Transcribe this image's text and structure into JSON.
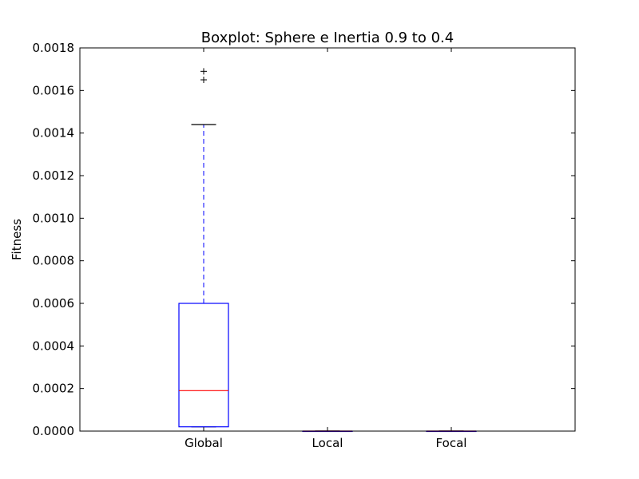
{
  "chart_data": {
    "type": "boxplot",
    "title": "Boxplot: Sphere e Inertia 0.9 to 0.4",
    "xlabel": "",
    "ylabel": "Fitness",
    "ylim": [
      0,
      0.0018
    ],
    "yticks": [
      0,
      0.0002,
      0.0004,
      0.0006,
      0.0008,
      0.001,
      0.0012,
      0.0014,
      0.0016,
      0.0018
    ],
    "ytick_labels": [
      "0.0000",
      "0.0002",
      "0.0004",
      "0.0006",
      "0.0008",
      "0.0010",
      "0.0012",
      "0.0014",
      "0.0016",
      "0.0018"
    ],
    "categories": [
      "Global",
      "Local",
      "Focal"
    ],
    "boxes": [
      {
        "category": "Global",
        "whisker_low": 2e-05,
        "q1": 2e-05,
        "median": 0.00019,
        "q3": 0.0006,
        "whisker_high": 0.00144,
        "outliers": [
          0.00165,
          0.00169
        ]
      },
      {
        "category": "Local",
        "whisker_low": 0,
        "q1": 0,
        "median": 0,
        "q3": 0,
        "whisker_high": 0,
        "outliers": []
      },
      {
        "category": "Focal",
        "whisker_low": 0,
        "q1": 0,
        "median": 0,
        "q3": 0,
        "whisker_high": 0,
        "outliers": []
      }
    ],
    "colors": {
      "box": "#0000ff",
      "whisker": "#0000ff",
      "median": "#ff0000",
      "cap": "#000000",
      "outlier": "#000000",
      "axes": "#000000"
    },
    "grid": false
  }
}
